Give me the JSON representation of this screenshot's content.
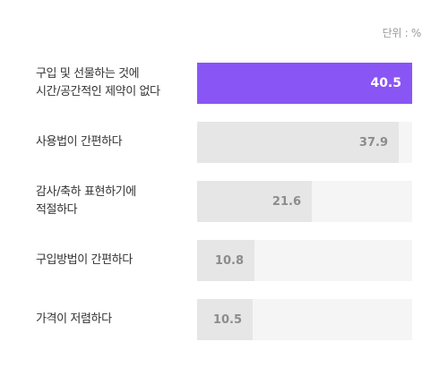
{
  "unit_label": "단위 : %",
  "chart_data": {
    "type": "bar",
    "orientation": "horizontal",
    "categories": [
      "구입 및 선물하는 것에\n시간/공간적인 제약이 없다",
      "사용법이 간편하다",
      "감사/축하 표현하기에\n적절하다",
      "구입방법이 간편하다",
      "가격이 저렴하다"
    ],
    "values": [
      40.5,
      37.9,
      21.6,
      10.8,
      10.5
    ],
    "value_labels": [
      "40.5",
      "37.9",
      "21.6",
      "10.8",
      "10.5"
    ],
    "xlim": [
      0,
      40.5
    ],
    "highlight_color": "#8a55f5",
    "bar_color": "#e6e6e6",
    "track_color": "#f5f5f5"
  }
}
